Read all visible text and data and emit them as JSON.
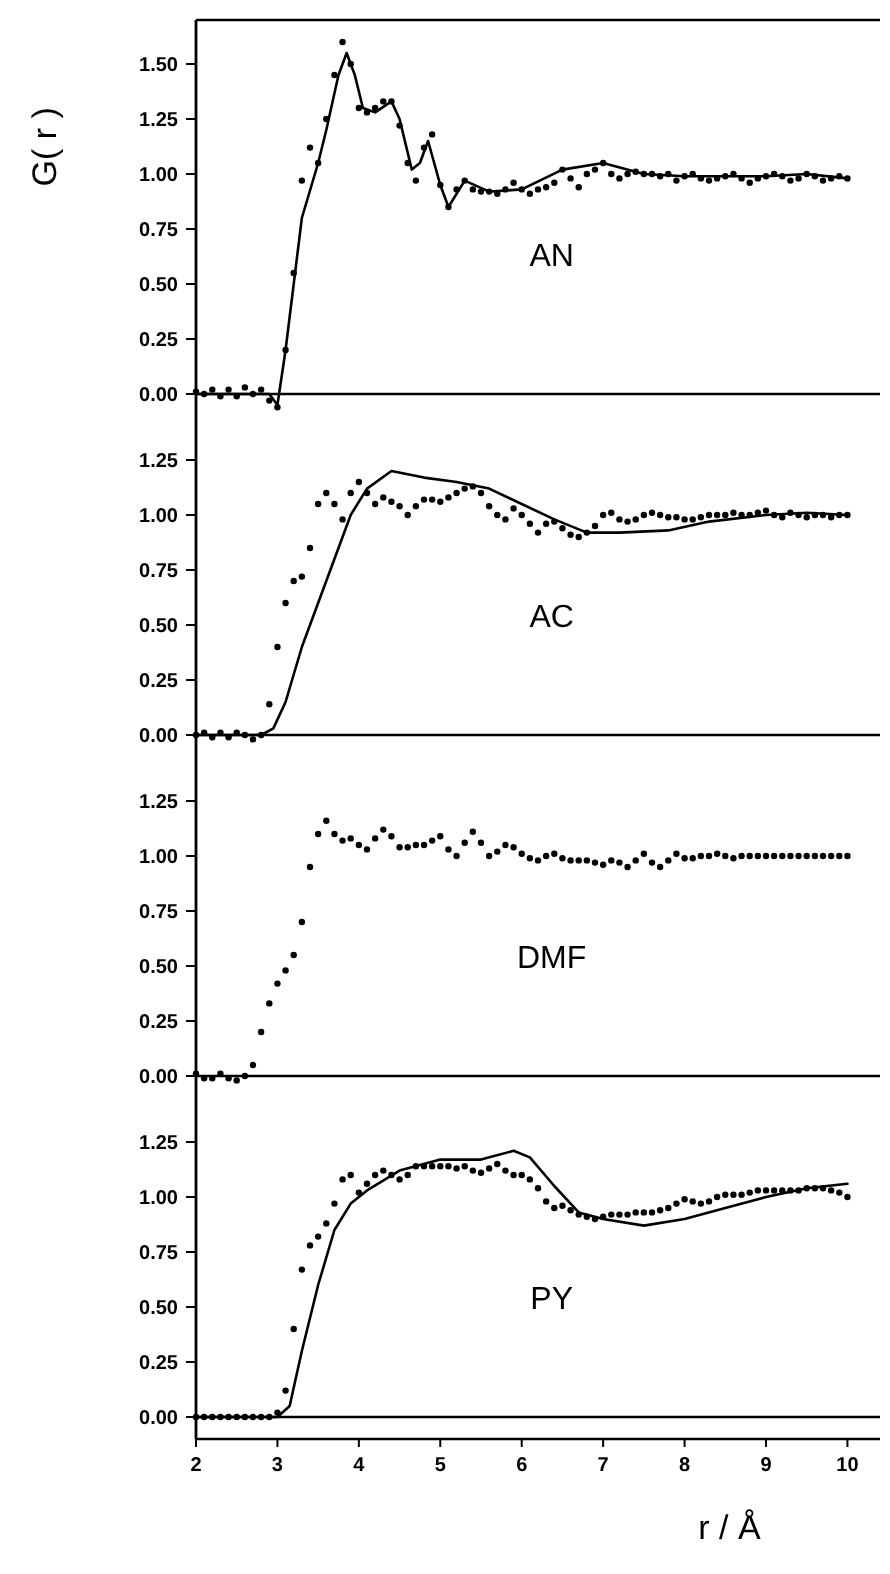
{
  "chart_data": [
    {
      "type": "line",
      "ylabel": "G( r )",
      "annotations": [
        "AN"
      ],
      "xlim": [
        2,
        10.4
      ],
      "ylim": [
        -0.1,
        1.7
      ],
      "yticks": [
        {
          "value": 0,
          "label": "0.00"
        },
        {
          "value": 0.25,
          "label": "0.25"
        },
        {
          "value": 0.5,
          "label": "0.50"
        },
        {
          "value": 0.75,
          "label": "0.75"
        },
        {
          "value": 1,
          "label": "1.00"
        },
        {
          "value": 1.25,
          "label": "1.25"
        },
        {
          "value": 1.5,
          "label": "1.50"
        }
      ],
      "tick_labels": "y",
      "ref_lines": [
        {
          "axis": "y",
          "value": 0
        }
      ],
      "x": [
        2.0,
        2.1,
        2.2,
        2.3,
        2.4,
        2.5,
        2.6,
        2.7,
        2.8,
        2.9,
        3.0,
        3.1,
        3.2,
        3.3,
        3.4,
        3.5,
        3.6,
        3.7,
        3.8,
        3.9,
        4.0,
        4.1,
        4.2,
        4.3,
        4.4,
        4.5,
        4.6,
        4.7,
        4.8,
        4.9,
        5.0,
        5.1,
        5.2,
        5.3,
        5.4,
        5.5,
        5.6,
        5.7,
        5.8,
        5.9,
        6.0,
        6.1,
        6.2,
        6.3,
        6.4,
        6.5,
        6.6,
        6.7,
        6.8,
        6.9,
        7.0,
        7.1,
        7.2,
        7.3,
        7.4,
        7.5,
        7.6,
        7.7,
        7.8,
        7.9,
        8.0,
        8.1,
        8.2,
        8.3,
        8.4,
        8.5,
        8.6,
        8.7,
        8.8,
        8.9,
        9.0,
        9.1,
        9.2,
        9.3,
        9.4,
        9.5,
        9.6,
        9.7,
        9.8,
        9.9,
        10.0
      ],
      "series": [
        {
          "type": "scatter",
          "marker": "circle",
          "color": "#000000",
          "values": [
            0.01,
            0.0,
            0.02,
            -0.01,
            0.02,
            -0.01,
            0.03,
            0.0,
            0.02,
            -0.03,
            -0.06,
            0.2,
            0.55,
            0.97,
            1.12,
            1.05,
            1.25,
            1.45,
            1.6,
            1.5,
            1.3,
            1.28,
            1.3,
            1.33,
            1.33,
            1.22,
            1.05,
            0.97,
            1.12,
            1.18,
            0.95,
            0.85,
            0.93,
            0.97,
            0.93,
            0.92,
            0.92,
            0.91,
            0.93,
            0.96,
            0.93,
            0.91,
            0.93,
            0.94,
            0.96,
            1.02,
            0.98,
            0.94,
            1.0,
            1.02,
            1.05,
            1.0,
            0.98,
            1.0,
            1.01,
            1.0,
            1.0,
            0.99,
            1.0,
            0.97,
            0.99,
            1.0,
            0.98,
            0.97,
            0.98,
            0.99,
            1.0,
            0.98,
            0.96,
            0.98,
            0.99,
            1.0,
            0.99,
            0.97,
            0.98,
            1.0,
            0.99,
            0.97,
            0.98,
            0.99,
            0.98
          ]
        },
        {
          "type": "line",
          "color": "#000000",
          "x": [
            2,
            2.9,
            3.0,
            3.1,
            3.3,
            3.5,
            3.6,
            3.75,
            3.85,
            3.95,
            4.05,
            4.2,
            4.4,
            4.5,
            4.65,
            4.75,
            4.85,
            5.0,
            5.1,
            5.3,
            5.6,
            6.0,
            6.5,
            7.0,
            7.5,
            8.0,
            8.5,
            9.0,
            9.5,
            10.0
          ],
          "values": [
            0,
            0,
            -0.05,
            0.2,
            0.8,
            1.05,
            1.2,
            1.45,
            1.55,
            1.45,
            1.3,
            1.28,
            1.33,
            1.25,
            1.02,
            1.05,
            1.15,
            0.95,
            0.85,
            0.97,
            0.92,
            0.93,
            1.02,
            1.05,
            1.0,
            0.99,
            0.99,
            0.99,
            1.0,
            0.98
          ]
        }
      ]
    },
    {
      "type": "line",
      "annotations": [
        "AC"
      ],
      "xlim": [
        2,
        10.4
      ],
      "ylim": [
        -0.1,
        1.45
      ],
      "yticks": [
        {
          "value": 0,
          "label": "0.00"
        },
        {
          "value": 0.25,
          "label": "0.25"
        },
        {
          "value": 0.5,
          "label": "0.50"
        },
        {
          "value": 0.75,
          "label": "0.75"
        },
        {
          "value": 1,
          "label": "1.00"
        },
        {
          "value": 1.25,
          "label": "1.25"
        }
      ],
      "tick_labels": "y",
      "ref_lines": [
        {
          "axis": "y",
          "value": 0
        }
      ],
      "x": [
        2.0,
        2.1,
        2.2,
        2.3,
        2.4,
        2.5,
        2.6,
        2.7,
        2.8,
        2.9,
        3.0,
        3.1,
        3.2,
        3.3,
        3.4,
        3.5,
        3.6,
        3.7,
        3.8,
        3.9,
        4.0,
        4.1,
        4.2,
        4.3,
        4.4,
        4.5,
        4.6,
        4.7,
        4.8,
        4.9,
        5.0,
        5.1,
        5.2,
        5.3,
        5.4,
        5.5,
        5.6,
        5.7,
        5.8,
        5.9,
        6.0,
        6.1,
        6.2,
        6.3,
        6.4,
        6.5,
        6.6,
        6.7,
        6.8,
        6.9,
        7.0,
        7.1,
        7.2,
        7.3,
        7.4,
        7.5,
        7.6,
        7.7,
        7.8,
        7.9,
        8.0,
        8.1,
        8.2,
        8.3,
        8.4,
        8.5,
        8.6,
        8.7,
        8.8,
        8.9,
        9.0,
        9.1,
        9.2,
        9.3,
        9.4,
        9.5,
        9.6,
        9.7,
        9.8,
        9.9,
        10.0
      ],
      "series": [
        {
          "type": "scatter",
          "marker": "circle",
          "color": "#000000",
          "values": [
            0.0,
            0.01,
            -0.01,
            0.01,
            -0.01,
            0.01,
            0.0,
            -0.02,
            0.0,
            0.14,
            0.4,
            0.6,
            0.7,
            0.72,
            0.85,
            1.05,
            1.1,
            1.05,
            0.98,
            1.1,
            1.15,
            1.1,
            1.05,
            1.08,
            1.06,
            1.04,
            1.0,
            1.04,
            1.07,
            1.07,
            1.06,
            1.08,
            1.1,
            1.12,
            1.13,
            1.1,
            1.04,
            1.0,
            0.98,
            1.03,
            1.0,
            0.96,
            0.92,
            0.96,
            0.97,
            0.94,
            0.91,
            0.9,
            0.92,
            0.95,
            1.0,
            1.01,
            0.98,
            0.97,
            0.98,
            1.0,
            1.01,
            1.0,
            0.99,
            0.99,
            0.98,
            0.98,
            0.99,
            1.0,
            1.0,
            1.0,
            1.01,
            1.0,
            1.0,
            1.01,
            1.02,
            1.0,
            0.99,
            1.01,
            1.0,
            0.99,
            1.0,
            1.0,
            0.99,
            1.0,
            1.0
          ]
        },
        {
          "type": "line",
          "color": "#000000",
          "x": [
            2,
            2.8,
            2.95,
            3.1,
            3.3,
            3.5,
            3.7,
            3.9,
            4.1,
            4.4,
            4.8,
            5.2,
            5.6,
            6.0,
            6.4,
            6.8,
            7.2,
            7.8,
            8.3,
            9.0,
            9.5,
            10.0
          ],
          "values": [
            0,
            0,
            0.03,
            0.15,
            0.4,
            0.6,
            0.8,
            1.0,
            1.12,
            1.2,
            1.17,
            1.15,
            1.12,
            1.05,
            0.98,
            0.92,
            0.92,
            0.93,
            0.97,
            1.0,
            1.01,
            1.0
          ]
        }
      ]
    },
    {
      "type": "line",
      "annotations": [
        "DMF"
      ],
      "xlim": [
        2,
        10.4
      ],
      "ylim": [
        -0.1,
        1.45
      ],
      "yticks": [
        {
          "value": 0,
          "label": "0.00"
        },
        {
          "value": 0.25,
          "label": "0.25"
        },
        {
          "value": 0.5,
          "label": "0.50"
        },
        {
          "value": 0.75,
          "label": "0.75"
        },
        {
          "value": 1,
          "label": "1.00"
        },
        {
          "value": 1.25,
          "label": "1.25"
        }
      ],
      "tick_labels": "y",
      "ref_lines": [
        {
          "axis": "y",
          "value": 0
        }
      ],
      "x": [
        2.0,
        2.1,
        2.2,
        2.3,
        2.4,
        2.5,
        2.6,
        2.7,
        2.8,
        2.9,
        3.0,
        3.1,
        3.2,
        3.3,
        3.4,
        3.5,
        3.6,
        3.7,
        3.8,
        3.9,
        4.0,
        4.1,
        4.2,
        4.3,
        4.4,
        4.5,
        4.6,
        4.7,
        4.8,
        4.9,
        5.0,
        5.1,
        5.2,
        5.3,
        5.4,
        5.5,
        5.6,
        5.7,
        5.8,
        5.9,
        6.0,
        6.1,
        6.2,
        6.3,
        6.4,
        6.5,
        6.6,
        6.7,
        6.8,
        6.9,
        7.0,
        7.1,
        7.2,
        7.3,
        7.4,
        7.5,
        7.6,
        7.7,
        7.8,
        7.9,
        8.0,
        8.1,
        8.2,
        8.3,
        8.4,
        8.5,
        8.6,
        8.7,
        8.8,
        8.9,
        9.0,
        9.1,
        9.2,
        9.3,
        9.4,
        9.5,
        9.6,
        9.7,
        9.8,
        9.9,
        10.0
      ],
      "series": [
        {
          "type": "scatter",
          "marker": "circle",
          "color": "#000000",
          "values": [
            0.01,
            -0.01,
            -0.01,
            0.01,
            -0.01,
            -0.02,
            0.0,
            0.05,
            0.2,
            0.33,
            0.42,
            0.48,
            0.55,
            0.7,
            0.95,
            1.1,
            1.16,
            1.1,
            1.07,
            1.08,
            1.05,
            1.03,
            1.08,
            1.12,
            1.09,
            1.04,
            1.04,
            1.05,
            1.05,
            1.07,
            1.09,
            1.03,
            1.0,
            1.06,
            1.11,
            1.06,
            1.0,
            1.02,
            1.05,
            1.04,
            1.01,
            0.99,
            0.98,
            1.0,
            1.01,
            0.99,
            0.98,
            0.98,
            0.98,
            0.97,
            0.96,
            0.98,
            0.97,
            0.95,
            0.98,
            1.01,
            0.97,
            0.95,
            0.98,
            1.01,
            0.99,
            0.99,
            1.0,
            1.0,
            1.01,
            1.0,
            0.99,
            1.0,
            1.0,
            1.0,
            1.0,
            1.0,
            1.0,
            1.0,
            1.0,
            1.0,
            1.0,
            1.0,
            1.0,
            1.0,
            1.0
          ]
        }
      ]
    },
    {
      "type": "line",
      "xlabel": "r / Å",
      "annotations": [
        "PY"
      ],
      "xlim": [
        2,
        10.4
      ],
      "ylim": [
        -0.1,
        1.45
      ],
      "yticks": [
        {
          "value": 0,
          "label": "0.00"
        },
        {
          "value": 0.25,
          "label": "0.25"
        },
        {
          "value": 0.5,
          "label": "0.50"
        },
        {
          "value": 0.75,
          "label": "0.75"
        },
        {
          "value": 1,
          "label": "1.00"
        },
        {
          "value": 1.25,
          "label": "1.25"
        }
      ],
      "xticks": [
        2,
        3,
        4,
        5,
        6,
        7,
        8,
        9,
        10
      ],
      "ref_lines": [
        {
          "axis": "y",
          "value": 0
        }
      ],
      "x": [
        2.0,
        2.1,
        2.2,
        2.3,
        2.4,
        2.5,
        2.6,
        2.7,
        2.8,
        2.9,
        3.0,
        3.1,
        3.2,
        3.3,
        3.4,
        3.5,
        3.6,
        3.7,
        3.8,
        3.9,
        4.0,
        4.1,
        4.2,
        4.3,
        4.4,
        4.5,
        4.6,
        4.7,
        4.8,
        4.9,
        5.0,
        5.1,
        5.2,
        5.3,
        5.4,
        5.5,
        5.6,
        5.7,
        5.8,
        5.9,
        6.0,
        6.1,
        6.2,
        6.3,
        6.4,
        6.5,
        6.6,
        6.7,
        6.8,
        6.9,
        7.0,
        7.1,
        7.2,
        7.3,
        7.4,
        7.5,
        7.6,
        7.7,
        7.8,
        7.9,
        8.0,
        8.1,
        8.2,
        8.3,
        8.4,
        8.5,
        8.6,
        8.7,
        8.8,
        8.9,
        9.0,
        9.1,
        9.2,
        9.3,
        9.4,
        9.5,
        9.6,
        9.7,
        9.8,
        9.9,
        10.0
      ],
      "series": [
        {
          "type": "scatter",
          "marker": "circle",
          "color": "#000000",
          "values": [
            0.0,
            0.0,
            0.0,
            0.0,
            0.0,
            0.0,
            0.0,
            0.0,
            0.0,
            0.0,
            0.02,
            0.12,
            0.4,
            0.67,
            0.78,
            0.82,
            0.88,
            0.97,
            1.08,
            1.1,
            1.02,
            1.06,
            1.1,
            1.12,
            1.1,
            1.08,
            1.1,
            1.14,
            1.14,
            1.14,
            1.14,
            1.14,
            1.13,
            1.14,
            1.12,
            1.11,
            1.13,
            1.15,
            1.12,
            1.1,
            1.1,
            1.08,
            1.04,
            0.98,
            0.95,
            0.96,
            0.94,
            0.92,
            0.91,
            0.9,
            0.91,
            0.92,
            0.92,
            0.92,
            0.93,
            0.93,
            0.93,
            0.94,
            0.95,
            0.97,
            0.99,
            0.98,
            0.97,
            0.98,
            1.0,
            1.01,
            1.01,
            1.01,
            1.02,
            1.03,
            1.03,
            1.03,
            1.03,
            1.03,
            1.03,
            1.04,
            1.04,
            1.04,
            1.03,
            1.02,
            1.0
          ]
        },
        {
          "type": "line",
          "color": "#000000",
          "x": [
            2,
            3.0,
            3.15,
            3.3,
            3.5,
            3.7,
            3.9,
            4.1,
            4.5,
            5.0,
            5.5,
            5.9,
            6.1,
            6.4,
            6.7,
            7.0,
            7.5,
            8.0,
            8.5,
            9.0,
            9.5,
            10.0
          ],
          "values": [
            0,
            0,
            0.05,
            0.3,
            0.6,
            0.85,
            0.97,
            1.03,
            1.12,
            1.17,
            1.17,
            1.21,
            1.18,
            1.05,
            0.93,
            0.9,
            0.87,
            0.9,
            0.95,
            1.0,
            1.04,
            1.06
          ]
        }
      ]
    }
  ]
}
